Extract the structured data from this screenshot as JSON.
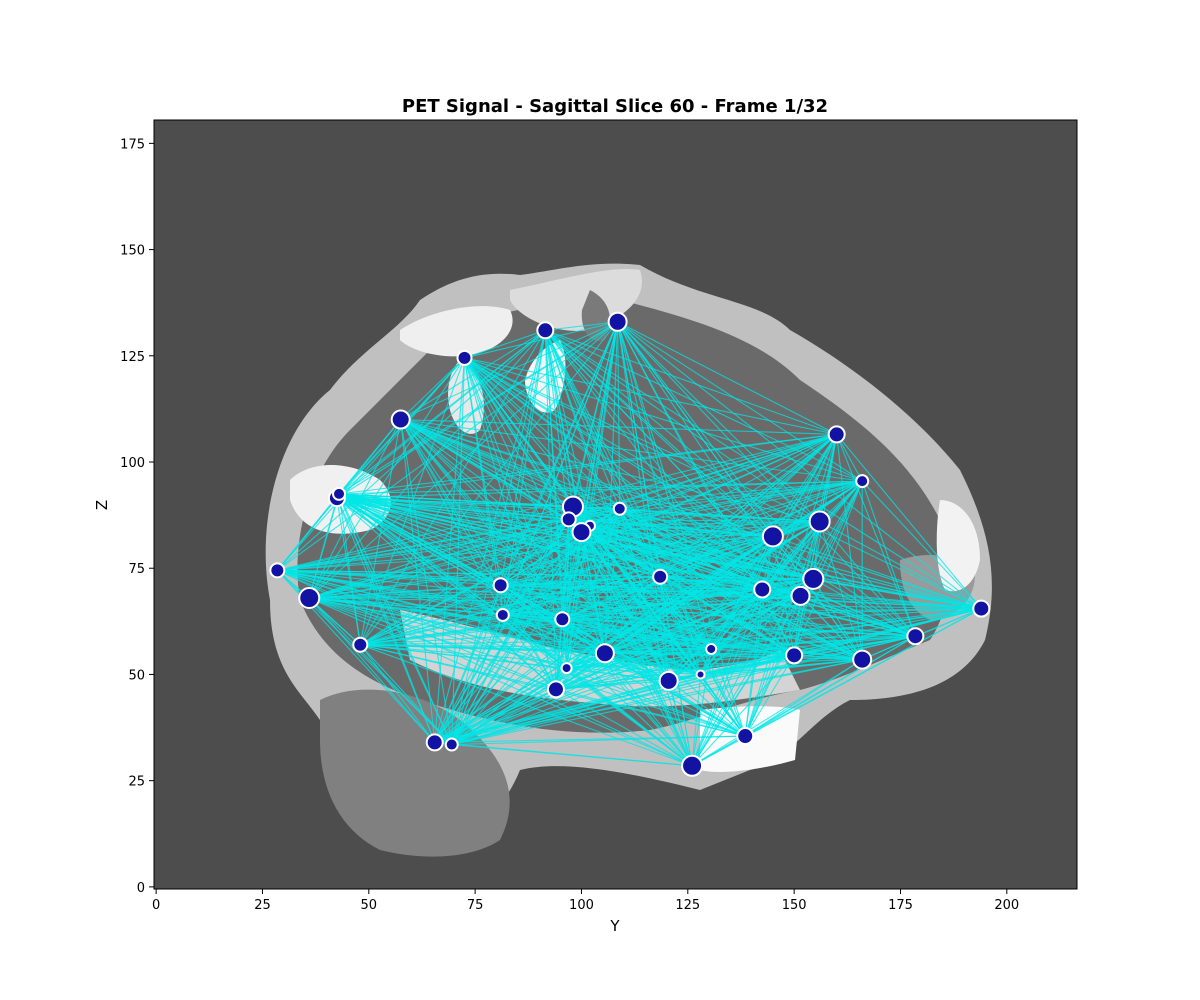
{
  "chart_data": {
    "type": "scatter",
    "title": "PET Signal - Sagittal Slice 60 - Frame 1/32",
    "xlabel": "Y",
    "ylabel": "Z",
    "xlim": [
      -0.5,
      216.5
    ],
    "ylim": [
      -0.5,
      180.5
    ],
    "xticks": [
      0,
      25,
      50,
      75,
      100,
      125,
      150,
      175,
      200
    ],
    "yticks": [
      0,
      25,
      50,
      75,
      100,
      125,
      150,
      175
    ],
    "grid": false,
    "legend": "none",
    "background_image": "grayscale sagittal brain atlas slice",
    "colors": {
      "background": "#4d4d4d",
      "node_fill": "#1212a3",
      "node_stroke": "#ffffff",
      "edge": "#00e5e5"
    },
    "nodes": [
      {
        "y": 108.5,
        "z": 133,
        "s": 9
      },
      {
        "y": 91.5,
        "z": 131,
        "s": 8
      },
      {
        "y": 72.5,
        "z": 124.5,
        "s": 7
      },
      {
        "y": 57.5,
        "z": 110,
        "s": 9
      },
      {
        "y": 160,
        "z": 106.5,
        "s": 8
      },
      {
        "y": 166,
        "z": 95.5,
        "s": 6
      },
      {
        "y": 42.5,
        "z": 91.5,
        "s": 8
      },
      {
        "y": 43,
        "z": 92.5,
        "s": 6
      },
      {
        "y": 98,
        "z": 89.5,
        "s": 10
      },
      {
        "y": 109,
        "z": 89,
        "s": 6
      },
      {
        "y": 97,
        "z": 86.5,
        "s": 7
      },
      {
        "y": 102,
        "z": 85,
        "s": 5
      },
      {
        "y": 100,
        "z": 83.5,
        "s": 9
      },
      {
        "y": 145,
        "z": 82.5,
        "s": 10
      },
      {
        "y": 156,
        "z": 86,
        "s": 10
      },
      {
        "y": 28.5,
        "z": 74.5,
        "s": 7
      },
      {
        "y": 118.5,
        "z": 73,
        "s": 7
      },
      {
        "y": 154.5,
        "z": 72.5,
        "s": 10
      },
      {
        "y": 81,
        "z": 71,
        "s": 7
      },
      {
        "y": 142.5,
        "z": 70,
        "s": 8
      },
      {
        "y": 36,
        "z": 68,
        "s": 10
      },
      {
        "y": 151.5,
        "z": 68.5,
        "s": 9
      },
      {
        "y": 81.5,
        "z": 64,
        "s": 6
      },
      {
        "y": 95.5,
        "z": 63,
        "s": 7
      },
      {
        "y": 194,
        "z": 65.5,
        "s": 8
      },
      {
        "y": 178.5,
        "z": 59,
        "s": 8
      },
      {
        "y": 48,
        "z": 57,
        "s": 7
      },
      {
        "y": 130.5,
        "z": 56,
        "s": 5
      },
      {
        "y": 105.5,
        "z": 55,
        "s": 9
      },
      {
        "y": 150,
        "z": 54.5,
        "s": 8
      },
      {
        "y": 166,
        "z": 53.5,
        "s": 9
      },
      {
        "y": 96.5,
        "z": 51.5,
        "s": 5
      },
      {
        "y": 128,
        "z": 50,
        "s": 4
      },
      {
        "y": 120.5,
        "z": 48.5,
        "s": 9
      },
      {
        "y": 94,
        "z": 46.5,
        "s": 8
      },
      {
        "y": 138.5,
        "z": 35.5,
        "s": 8
      },
      {
        "y": 65.5,
        "z": 34,
        "s": 8
      },
      {
        "y": 69.5,
        "z": 33.5,
        "s": 6
      },
      {
        "y": 126,
        "z": 28.5,
        "s": 10
      }
    ]
  }
}
